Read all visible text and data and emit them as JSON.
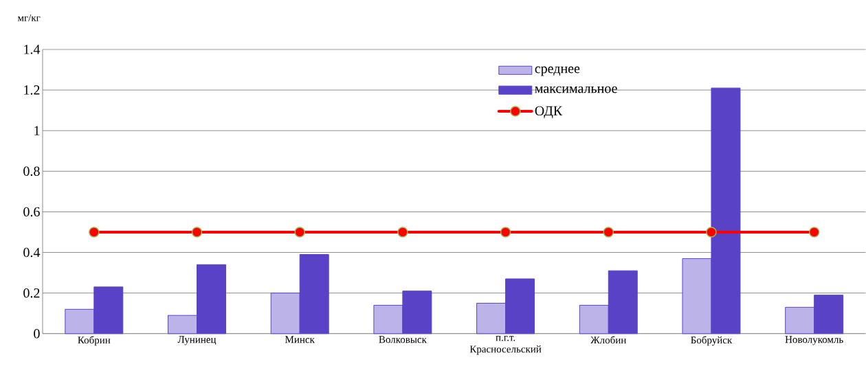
{
  "chart_data": {
    "type": "bar",
    "ylabel": "мг/кг",
    "categories": [
      "Кобрин",
      "Лунинец",
      "Минск",
      "Волковыск",
      "п.г.т. Красносельский",
      "Жлобин",
      "Бобруйск",
      "Новолукомль"
    ],
    "series": [
      {
        "name": "среднее",
        "color": "#bcb4e8",
        "values": [
          0.12,
          0.09,
          0.2,
          0.14,
          0.15,
          0.14,
          0.37,
          0.13
        ]
      },
      {
        "name": "максимальное",
        "color": "#5a42c6",
        "values": [
          0.23,
          0.34,
          0.39,
          0.21,
          0.27,
          0.31,
          1.21,
          0.19
        ]
      },
      {
        "name": "ОДК",
        "type": "line",
        "color": "#ff0000",
        "marker": "circle",
        "values": [
          0.5,
          0.5,
          0.5,
          0.5,
          0.5,
          0.5,
          0.5,
          0.5
        ]
      }
    ],
    "ylim": [
      0,
      1.4
    ],
    "yticks": [
      0,
      0.2,
      0.4,
      0.6,
      0.8,
      1,
      1.2,
      1.4
    ],
    "grid": "y",
    "legend": "top"
  }
}
